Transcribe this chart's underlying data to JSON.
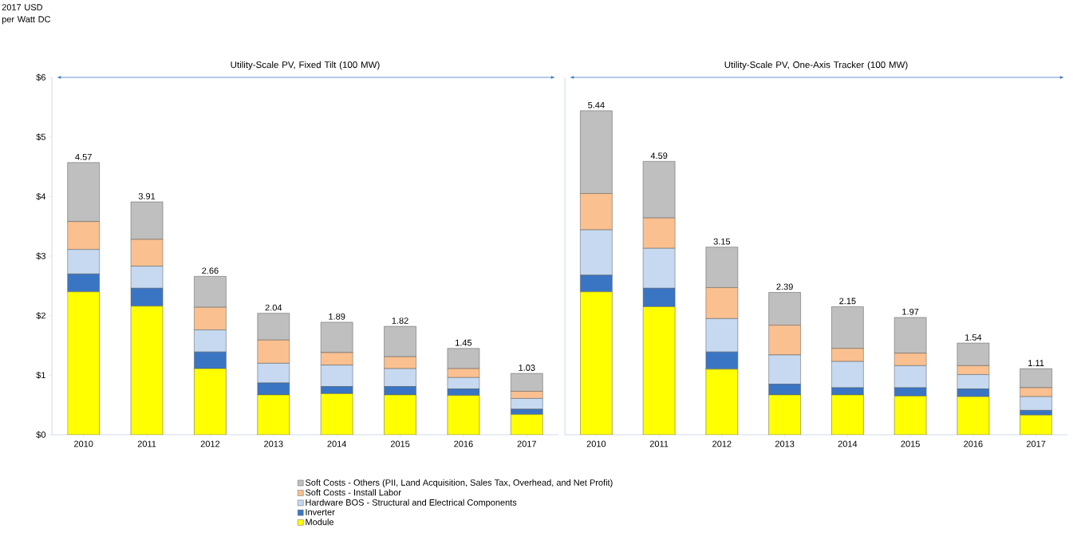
{
  "chart_data": [
    {
      "type": "bar",
      "stacked": true,
      "ylabel": "2017 USD per Watt DC",
      "annotations": [
        "Utility-Scale PV, Fixed Tilt (100 MW)"
      ],
      "categories": [
        "2010",
        "2011",
        "2012",
        "2013",
        "2014",
        "2015",
        "2016",
        "2017"
      ],
      "series": [
        {
          "name": "Module",
          "color": "#ffff00",
          "values": [
            2.4,
            2.16,
            1.11,
            0.67,
            0.69,
            0.67,
            0.66,
            0.34
          ]
        },
        {
          "name": "Inverter",
          "color": "#3a75c4",
          "values": [
            0.3,
            0.3,
            0.28,
            0.2,
            0.12,
            0.14,
            0.11,
            0.09
          ]
        },
        {
          "name": "Hardware BOS - Structural and Electrical Components",
          "color": "#c6d9f1",
          "values": [
            0.41,
            0.37,
            0.37,
            0.33,
            0.36,
            0.3,
            0.19,
            0.18
          ]
        },
        {
          "name": "Soft Costs - Install Labor",
          "color": "#fac090",
          "values": [
            0.47,
            0.45,
            0.38,
            0.39,
            0.21,
            0.2,
            0.15,
            0.12
          ]
        },
        {
          "name": "Soft Costs - Others (PII, Land Acquisition, Sales Tax, Overhead, and Net Profit)",
          "color": "#bfbfbf",
          "values": [
            0.99,
            0.63,
            0.52,
            0.45,
            0.51,
            0.51,
            0.34,
            0.3
          ]
        }
      ],
      "totals": [
        "4.57",
        "3.91",
        "2.66",
        "2.04",
        "1.89",
        "1.82",
        "1.45",
        "1.03"
      ],
      "ylim": [
        0,
        6
      ],
      "yticks": [
        {
          "value": 0,
          "label": "$0"
        },
        {
          "value": 1,
          "label": "$1"
        },
        {
          "value": 2,
          "label": "$2"
        },
        {
          "value": 3,
          "label": "$3"
        },
        {
          "value": 4,
          "label": "$4"
        },
        {
          "value": 5,
          "label": "$5"
        },
        {
          "value": 6,
          "label": "$6"
        }
      ],
      "legend": "bottom",
      "grid": false
    },
    {
      "type": "bar",
      "stacked": true,
      "annotations": [
        "Utility-Scale PV, One-Axis Tracker (100 MW)"
      ],
      "categories": [
        "2010",
        "2011",
        "2012",
        "2013",
        "2014",
        "2015",
        "2016",
        "2017"
      ],
      "series": [
        {
          "color": "#ffff00",
          "values": [
            2.4,
            2.15,
            1.1,
            0.67,
            0.67,
            0.65,
            0.64,
            0.33
          ]
        },
        {
          "color": "#3a75c4",
          "values": [
            0.28,
            0.31,
            0.29,
            0.18,
            0.12,
            0.14,
            0.13,
            0.08
          ]
        },
        {
          "color": "#c6d9f1",
          "values": [
            0.76,
            0.67,
            0.56,
            0.49,
            0.44,
            0.37,
            0.24,
            0.23
          ]
        },
        {
          "color": "#fac090",
          "values": [
            0.61,
            0.51,
            0.52,
            0.5,
            0.22,
            0.21,
            0.15,
            0.15
          ]
        },
        {
          "color": "#bfbfbf",
          "values": [
            1.39,
            0.95,
            0.68,
            0.55,
            0.7,
            0.6,
            0.38,
            0.32
          ]
        }
      ],
      "totals": [
        "5.44",
        "4.59",
        "3.15",
        "2.39",
        "2.15",
        "1.97",
        "1.54",
        "1.11"
      ],
      "ylim": [
        0,
        6
      ],
      "tick_labels": "x",
      "grid": false
    }
  ]
}
